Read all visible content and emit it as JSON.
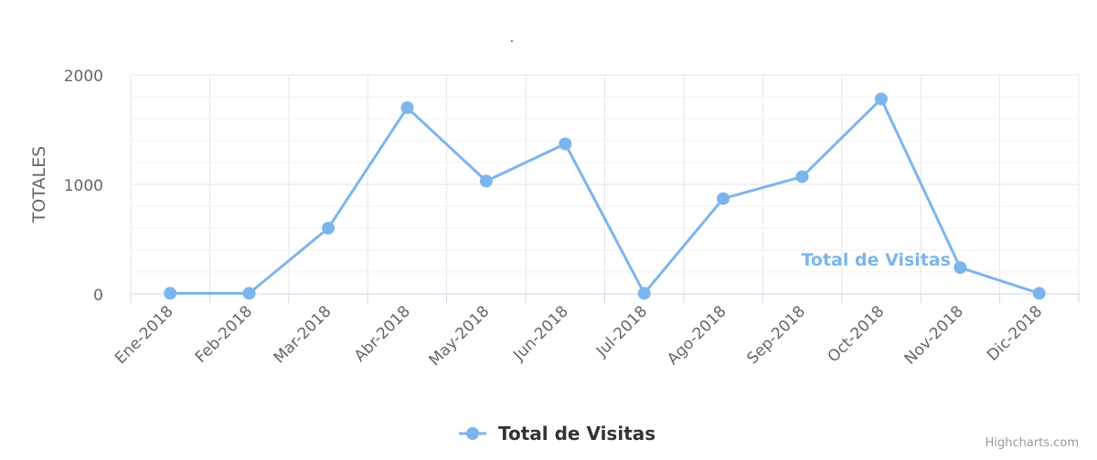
{
  "chart_data": {
    "type": "line",
    "title": ".",
    "ylabel": "TOTALES",
    "xlabel": "",
    "ylim": [
      0,
      2000
    ],
    "y_ticks": [
      "0",
      "1000",
      "2000"
    ],
    "categories": [
      "Ene-2018",
      "Feb-2018",
      "Mar-2018",
      "Abr-2018",
      "May-2018",
      "Jun-2018",
      "Jul-2018",
      "Ago-2018",
      "Sep-2018",
      "Oct-2018",
      "Nov-2018",
      "Dic-2018"
    ],
    "series": [
      {
        "name": "Total de Visitas",
        "color": "#7cb5ec",
        "values": [
          5,
          5,
          600,
          1700,
          1030,
          1370,
          5,
          870,
          1070,
          1780,
          240,
          5
        ]
      }
    ],
    "grid": true,
    "legend": "bottom-center",
    "credits": "Highcharts.com"
  }
}
